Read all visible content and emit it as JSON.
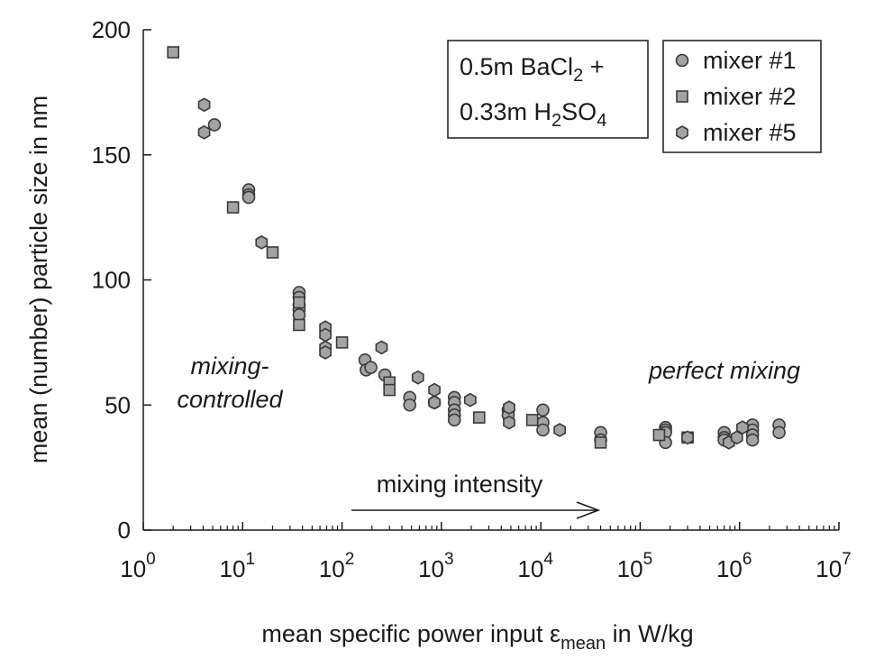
{
  "chart_data": {
    "type": "scatter",
    "xlabel": {
      "main": "mean specific power input ε",
      "sub": "mean",
      "unit": " in W/kg"
    },
    "ylabel": "mean (number) particle size in nm",
    "x_scale": "log",
    "xlim": [
      1,
      10000000
    ],
    "ylim": [
      0,
      200
    ],
    "x_ticks": [
      {
        "base": "10",
        "exp": "0",
        "value": 1
      },
      {
        "base": "10",
        "exp": "1",
        "value": 10
      },
      {
        "base": "10",
        "exp": "2",
        "value": 100
      },
      {
        "base": "10",
        "exp": "3",
        "value": 1000
      },
      {
        "base": "10",
        "exp": "4",
        "value": 10000
      },
      {
        "base": "10",
        "exp": "5",
        "value": 100000
      },
      {
        "base": "10",
        "exp": "6",
        "value": 1000000
      },
      {
        "base": "10",
        "exp": "7",
        "value": 10000000
      }
    ],
    "y_ticks": [
      0,
      50,
      100,
      150,
      200
    ],
    "grid": false,
    "legend_position": "top-right",
    "series": [
      {
        "name": "mixer #1",
        "marker": "circle",
        "points": [
          [
            5.2,
            162
          ],
          [
            11.5,
            136
          ],
          [
            11.5,
            134
          ],
          [
            11.5,
            133
          ],
          [
            37,
            95
          ],
          [
            37,
            93
          ],
          [
            37,
            90
          ],
          [
            37,
            88
          ],
          [
            37,
            86
          ],
          [
            170,
            68
          ],
          [
            175,
            64
          ],
          [
            195,
            65
          ],
          [
            270,
            62
          ],
          [
            480,
            53
          ],
          [
            480,
            50
          ],
          [
            850,
            51
          ],
          [
            1350,
            53
          ],
          [
            1350,
            51
          ],
          [
            1350,
            48
          ],
          [
            1350,
            46
          ],
          [
            1350,
            44
          ],
          [
            4700,
            48
          ],
          [
            4700,
            46
          ],
          [
            10500,
            48
          ],
          [
            10500,
            43
          ],
          [
            10500,
            40
          ],
          [
            40000,
            39
          ],
          [
            40000,
            36
          ],
          [
            180000,
            41
          ],
          [
            180000,
            40
          ],
          [
            180000,
            39
          ],
          [
            180000,
            35
          ],
          [
            700000,
            39
          ],
          [
            700000,
            37
          ],
          [
            700000,
            36
          ],
          [
            1350000,
            42
          ],
          [
            1350000,
            40
          ],
          [
            1350000,
            38
          ],
          [
            1350000,
            36
          ],
          [
            2500000,
            42
          ],
          [
            2500000,
            39
          ]
        ]
      },
      {
        "name": "mixer #2",
        "marker": "square",
        "points": [
          [
            2,
            191
          ],
          [
            8,
            129
          ],
          [
            20,
            111
          ],
          [
            37,
            91
          ],
          [
            37,
            82
          ],
          [
            100,
            75
          ],
          [
            300,
            59
          ],
          [
            300,
            56
          ],
          [
            2400,
            45
          ],
          [
            8200,
            44
          ],
          [
            40000,
            35
          ],
          [
            155000,
            38
          ],
          [
            300000,
            37
          ]
        ]
      },
      {
        "name": "mixer #5",
        "marker": "hexagon",
        "points": [
          [
            4.1,
            170
          ],
          [
            4.1,
            159
          ],
          [
            15.5,
            115
          ],
          [
            68,
            81
          ],
          [
            68,
            78
          ],
          [
            68,
            73
          ],
          [
            68,
            71
          ],
          [
            250,
            73
          ],
          [
            580,
            61
          ],
          [
            850,
            56
          ],
          [
            850,
            51
          ],
          [
            1950,
            52
          ],
          [
            4800,
            49
          ],
          [
            4800,
            43
          ],
          [
            15500,
            40
          ],
          [
            300000,
            37
          ],
          [
            780000,
            35
          ],
          [
            940000,
            37
          ],
          [
            1070000,
            41
          ]
        ]
      }
    ],
    "annotations": {
      "mixing_controlled_line1": "mixing-",
      "mixing_controlled_line2": "controlled",
      "perfect_mixing": "perfect mixing",
      "mixing_intensity": "mixing intensity",
      "composition_line1_a": "0.5m BaCl",
      "composition_line1_sub": "2",
      "composition_line1_b": " +",
      "composition_line2_a": "0.33m H",
      "composition_line2_sub1": "2",
      "composition_line2_b": "SO",
      "composition_line2_sub2": "4"
    }
  }
}
